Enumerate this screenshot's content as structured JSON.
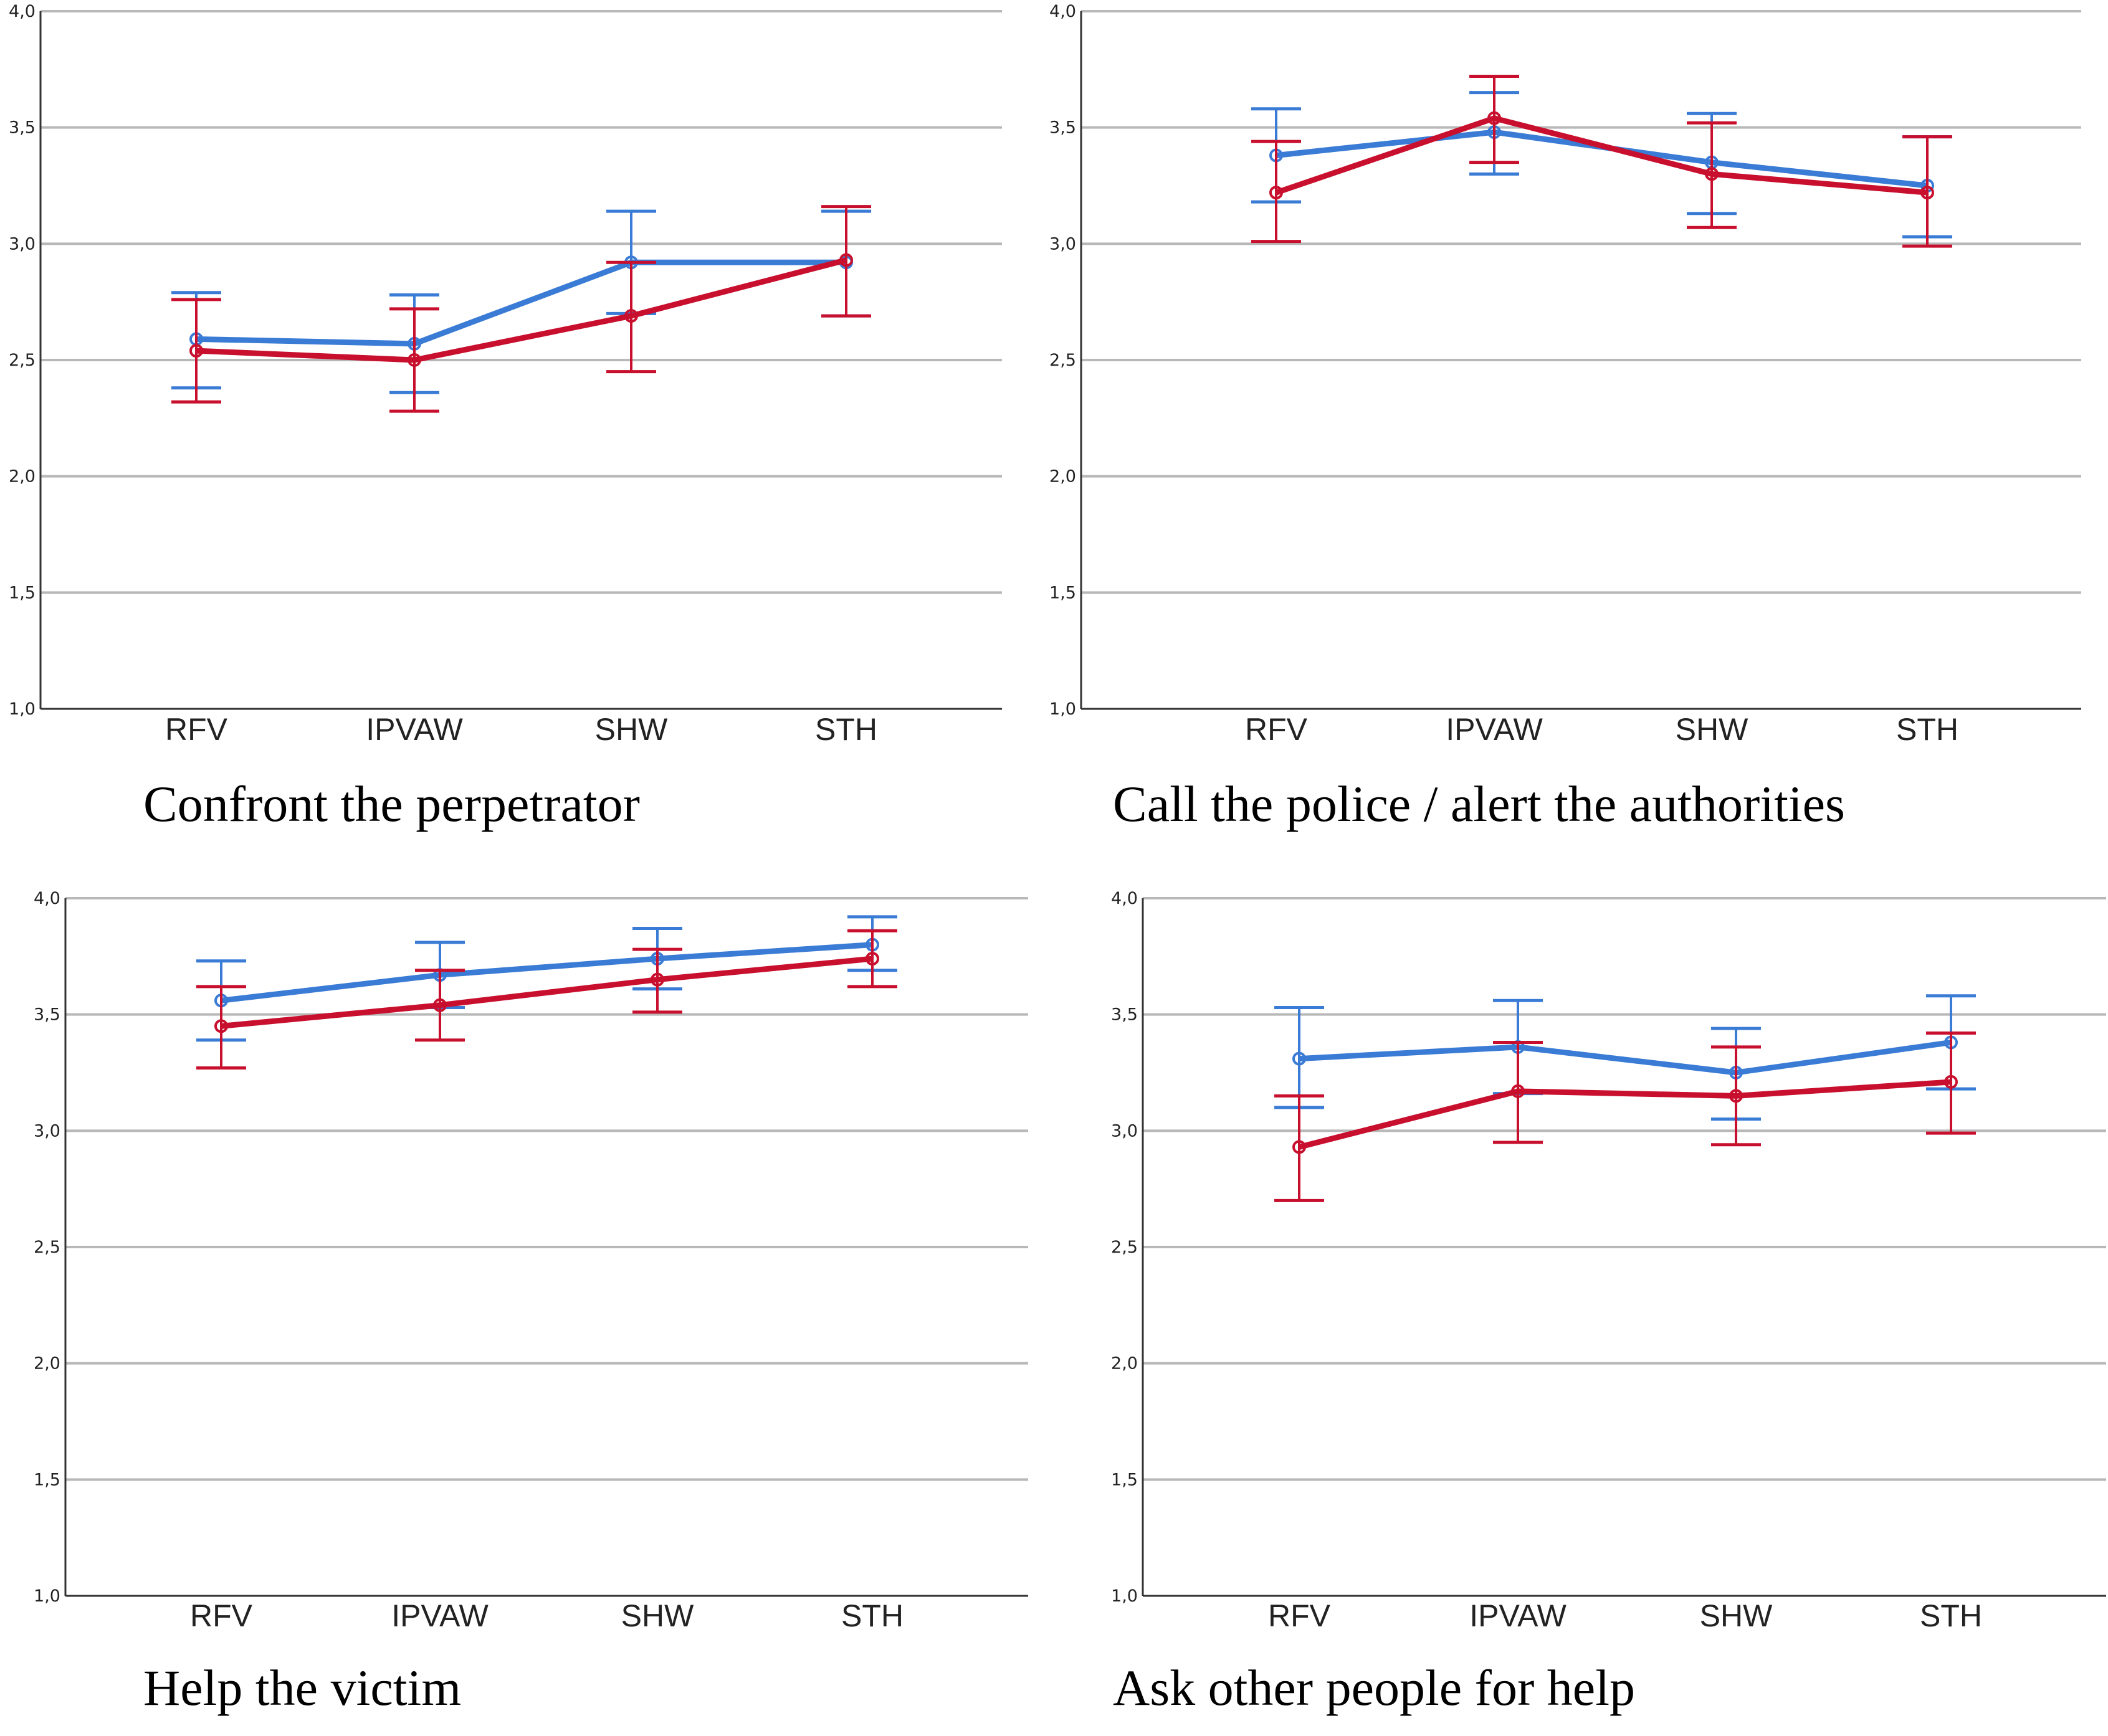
{
  "colors": {
    "series_blue": "#3a7bd5",
    "series_red": "#c8102e",
    "grid": "#b8b8b8",
    "axis": "#333333"
  },
  "chart_data": [
    {
      "type": "line",
      "title": "Confront the perpetrator",
      "categories": [
        "RFV",
        "IPVAW",
        "SHW",
        "STH"
      ],
      "ylim": [
        1.0,
        4.0
      ],
      "yticks": [
        "1,0",
        "1,5",
        "2,0",
        "2,5",
        "3,0",
        "3,5",
        "4,0"
      ],
      "grid": true,
      "series": [
        {
          "name": "blue",
          "color": "#3a7bd5",
          "values": [
            2.59,
            2.57,
            2.92,
            2.92
          ],
          "lower": [
            2.38,
            2.36,
            2.7,
            2.69
          ],
          "upper": [
            2.79,
            2.78,
            3.14,
            3.14
          ]
        },
        {
          "name": "red",
          "color": "#c8102e",
          "values": [
            2.54,
            2.5,
            2.69,
            2.93
          ],
          "lower": [
            2.32,
            2.28,
            2.45,
            2.69
          ],
          "upper": [
            2.76,
            2.72,
            2.92,
            3.16
          ]
        }
      ]
    },
    {
      "type": "line",
      "title": "Call the police / alert the authorities",
      "categories": [
        "RFV",
        "IPVAW",
        "SHW",
        "STH"
      ],
      "ylim": [
        1.0,
        4.0
      ],
      "yticks": [
        "1,0",
        "1,5",
        "2,0",
        "2,5",
        "3,0",
        "3,5",
        "4,0"
      ],
      "grid": true,
      "series": [
        {
          "name": "blue",
          "color": "#3a7bd5",
          "values": [
            3.38,
            3.48,
            3.35,
            3.25
          ],
          "lower": [
            3.18,
            3.3,
            3.13,
            3.03
          ],
          "upper": [
            3.58,
            3.65,
            3.56,
            3.46
          ]
        },
        {
          "name": "red",
          "color": "#c8102e",
          "values": [
            3.22,
            3.54,
            3.3,
            3.22
          ],
          "lower": [
            3.01,
            3.35,
            3.07,
            2.99
          ],
          "upper": [
            3.44,
            3.72,
            3.52,
            3.46
          ]
        }
      ]
    },
    {
      "type": "line",
      "title": "Help the victim",
      "categories": [
        "RFV",
        "IPVAW",
        "SHW",
        "STH"
      ],
      "ylim": [
        1.0,
        4.0
      ],
      "yticks": [
        "1,0",
        "1,5",
        "2,0",
        "2,5",
        "3,0",
        "3,5",
        "4,0"
      ],
      "grid": true,
      "series": [
        {
          "name": "blue",
          "color": "#3a7bd5",
          "values": [
            3.56,
            3.67,
            3.74,
            3.8
          ],
          "lower": [
            3.39,
            3.53,
            3.61,
            3.69
          ],
          "upper": [
            3.73,
            3.81,
            3.87,
            3.92
          ]
        },
        {
          "name": "red",
          "color": "#c8102e",
          "values": [
            3.45,
            3.54,
            3.65,
            3.74
          ],
          "lower": [
            3.27,
            3.39,
            3.51,
            3.62
          ],
          "upper": [
            3.62,
            3.69,
            3.78,
            3.86
          ]
        }
      ]
    },
    {
      "type": "line",
      "title": "Ask other people for help",
      "categories": [
        "RFV",
        "IPVAW",
        "SHW",
        "STH"
      ],
      "ylim": [
        1.0,
        4.0
      ],
      "yticks": [
        "1,0",
        "1,5",
        "2,0",
        "2,5",
        "3,0",
        "3,5",
        "4,0"
      ],
      "grid": true,
      "series": [
        {
          "name": "blue",
          "color": "#3a7bd5",
          "values": [
            3.31,
            3.36,
            3.25,
            3.38
          ],
          "lower": [
            3.1,
            3.16,
            3.05,
            3.18
          ],
          "upper": [
            3.53,
            3.56,
            3.44,
            3.58
          ]
        },
        {
          "name": "red",
          "color": "#c8102e",
          "values": [
            2.93,
            3.17,
            3.15,
            3.21
          ],
          "lower": [
            2.7,
            2.95,
            2.94,
            2.99
          ],
          "upper": [
            3.15,
            3.38,
            3.36,
            3.42
          ]
        }
      ]
    }
  ]
}
